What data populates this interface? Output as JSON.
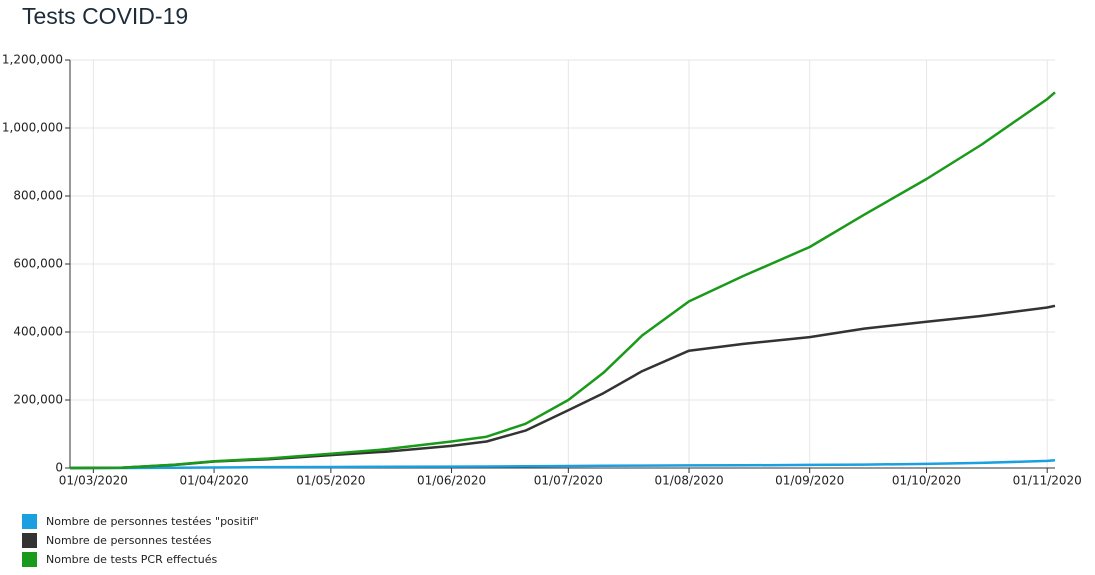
{
  "chart_data": {
    "type": "line",
    "title": "Tests COVID-19",
    "x": [
      "24/02/2020",
      "08/03/2020",
      "22/03/2020",
      "01/04/2020",
      "15/04/2020",
      "01/05/2020",
      "15/05/2020",
      "01/06/2020",
      "10/06/2020",
      "20/06/2020",
      "01/07/2020",
      "10/07/2020",
      "20/07/2020",
      "01/08/2020",
      "15/08/2020",
      "01/09/2020",
      "15/09/2020",
      "01/10/2020",
      "15/10/2020",
      "01/11/2020",
      "03/11/2020"
    ],
    "series": [
      {
        "name": "Nombre de personnes testées \"positif\"",
        "color": "#1a9fe0",
        "values": [
          0,
          0,
          500,
          1500,
          2500,
          3000,
          3500,
          4000,
          4500,
          5000,
          6000,
          6500,
          7000,
          7500,
          8000,
          9000,
          10000,
          12000,
          15000,
          21000,
          23000
        ]
      },
      {
        "name": "Nombre de personnes testées",
        "color": "#333333",
        "values": [
          0,
          1000,
          9000,
          19000,
          26000,
          38000,
          48000,
          65000,
          78000,
          110000,
          170000,
          220000,
          285000,
          345000,
          365000,
          385000,
          410000,
          430000,
          447000,
          472000,
          477000
        ]
      },
      {
        "name": "Nombre de tests PCR effectués",
        "color": "#1a9a1a",
        "values": [
          0,
          1000,
          10000,
          20000,
          28000,
          42000,
          55000,
          78000,
          92000,
          130000,
          200000,
          280000,
          390000,
          490000,
          565000,
          650000,
          745000,
          850000,
          950000,
          1085000,
          1105000
        ]
      }
    ],
    "xlim": [
      "24/02/2020",
      "03/11/2020"
    ],
    "xticks": [
      "01/03/2020",
      "01/04/2020",
      "01/05/2020",
      "01/06/2020",
      "01/07/2020",
      "01/08/2020",
      "01/09/2020",
      "01/10/2020",
      "01/11/2020"
    ],
    "ylim": [
      0,
      1200000
    ],
    "yticks": [
      0,
      {
        "value": 200000,
        "label": "200,000"
      },
      {
        "value": 400000,
        "label": "400,000"
      },
      {
        "value": 600000,
        "label": "600,000"
      },
      {
        "value": 800000,
        "label": "800,000"
      },
      {
        "value": 1000000,
        "label": "1,000,000"
      },
      {
        "value": 1200000,
        "label": "1,200,000"
      }
    ],
    "grid": true
  }
}
